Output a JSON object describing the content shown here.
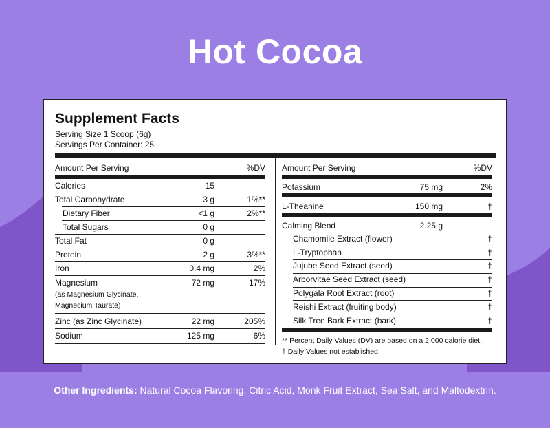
{
  "title": "Hot Cocoa",
  "facts": {
    "heading": "Supplement Facts",
    "serving_size": "Serving Size 1 Scoop (6g)",
    "servings_per_container": "Servings Per Container: 25",
    "col_header_left": "Amount Per Serving",
    "col_header_dv": "%DV",
    "left_rows": [
      {
        "name": "Calories",
        "amount": "15",
        "dv": ""
      },
      {
        "name": "Total Carbohydrate",
        "amount": "3 g",
        "dv": "1%**"
      },
      {
        "name": "Dietary Fiber",
        "amount": "<1 g",
        "dv": "2%**"
      },
      {
        "name": "Total Sugars",
        "amount": "0 g",
        "dv": ""
      },
      {
        "name": "Total Fat",
        "amount": "0 g",
        "dv": ""
      },
      {
        "name": "Protein",
        "amount": "2 g",
        "dv": "3%**"
      },
      {
        "name": "Iron",
        "amount": "0.4 mg",
        "dv": "2%"
      },
      {
        "name": "Magnesium",
        "amount": "72 mg",
        "dv": "17%",
        "note1": "(as Magnesium Glycinate,",
        "note2": "Magnesium Taurate)"
      },
      {
        "name": "Zinc (as Zinc Glycinate)",
        "amount": "22 mg",
        "dv": "205%"
      },
      {
        "name": "Sodium",
        "amount": "125 mg",
        "dv": "6%"
      }
    ],
    "right_rows": [
      {
        "name": "Potassium",
        "amount": "75 mg",
        "dv": "2%"
      },
      {
        "name": "L-Theanine",
        "amount": "150 mg",
        "dv": "†"
      },
      {
        "name": "Calming Blend",
        "amount": "2.25 g",
        "dv": ""
      }
    ],
    "blend_items": [
      {
        "name": "Chamomile Extract (flower)",
        "dv": "†"
      },
      {
        "name": "L-Tryptophan",
        "dv": "†"
      },
      {
        "name": "Jujube Seed Extract (seed)",
        "dv": "†"
      },
      {
        "name": "Arborvitae Seed Extract (seed)",
        "dv": "†"
      },
      {
        "name": "Polygala Root Extract (root)",
        "dv": "†"
      },
      {
        "name": "Reishi Extract (fruiting body)",
        "dv": "†"
      },
      {
        "name": "Silk Tree Bark Extract (bark)",
        "dv": "†"
      }
    ],
    "footnote_1": "** Percent Daily Values (DV) are based on a 2,000 calorie diet.",
    "footnote_2": "† Daily Values not established."
  },
  "other_ingredients": {
    "label": "Other Ingredients:",
    "text": " Natural Cocoa Flavoring, Citric Acid, Monk Fruit Extract, Sea Salt, and Maltodextrin."
  },
  "colors": {
    "background": "#9b7fe4",
    "wave": "#7f55c9",
    "panel": "#ffffff"
  }
}
